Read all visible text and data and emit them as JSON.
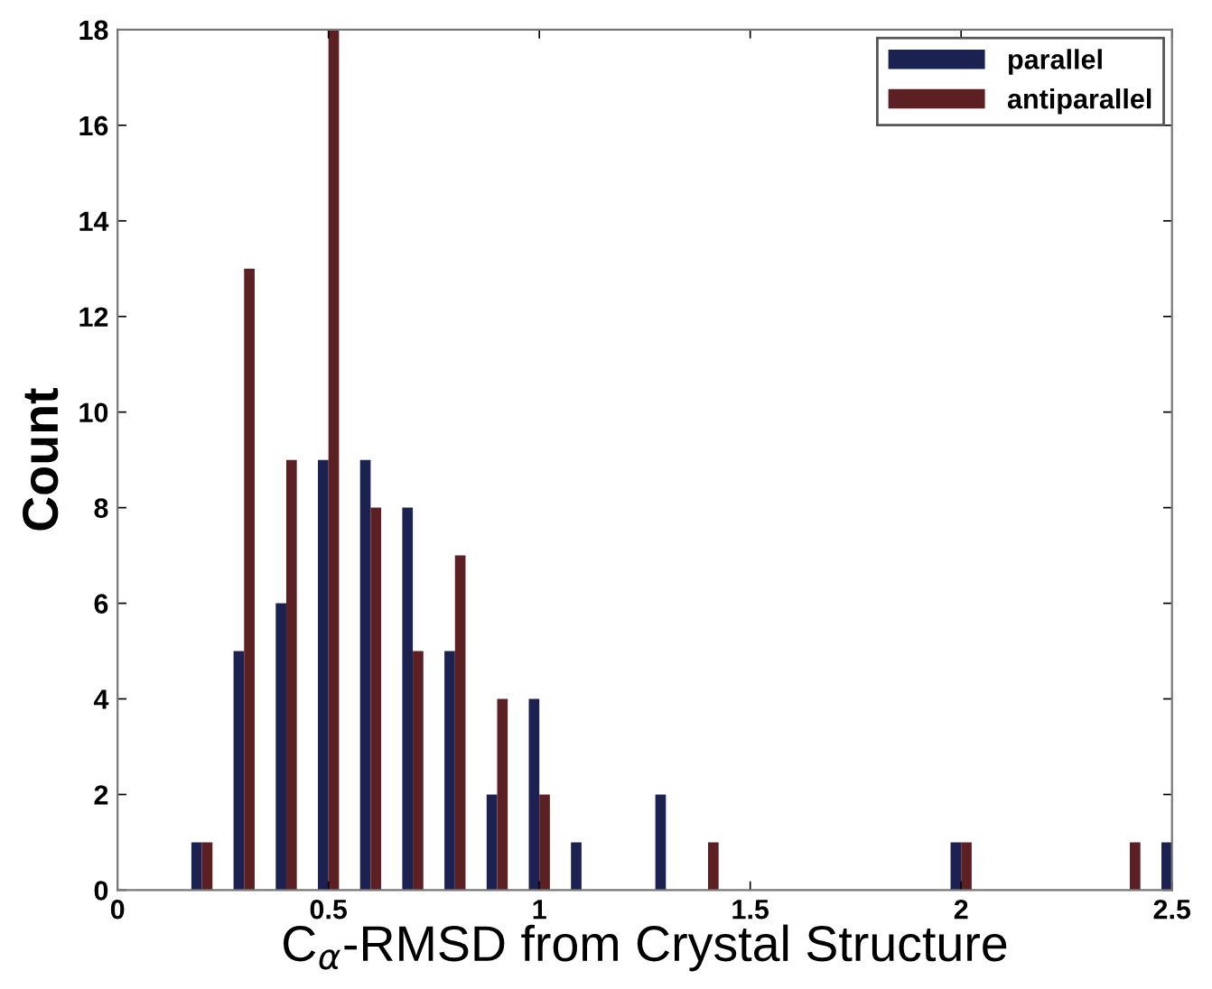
{
  "chart_data": {
    "type": "bar",
    "xlabel": "C$_{α}$-RMSD from Crystal Structure",
    "ylabel": "Count",
    "x": [
      0.2,
      0.3,
      0.4,
      0.5,
      0.6,
      0.7,
      0.8,
      0.9,
      1.0,
      1.1,
      1.3,
      1.4,
      2.0,
      2.4,
      2.5
    ],
    "series": [
      {
        "name": "parallel",
        "color": "#1b2150",
        "values": [
          1,
          5,
          6,
          9,
          9,
          8,
          5,
          2,
          4,
          1,
          2,
          0,
          1,
          0,
          1
        ]
      },
      {
        "name": "antiparallel",
        "color": "#5c1f22",
        "values": [
          1,
          13,
          9,
          18,
          8,
          5,
          7,
          4,
          2,
          0,
          0,
          1,
          1,
          1,
          0
        ]
      }
    ],
    "xlim": [
      0,
      2.5
    ],
    "xticks": [
      0,
      0.5,
      1,
      1.5,
      2,
      2.5
    ],
    "ylim": [
      0,
      18
    ],
    "yticks": [
      0,
      2,
      4,
      6,
      8,
      10,
      12,
      14,
      16,
      18
    ],
    "grid": false,
    "legend": "top right"
  }
}
